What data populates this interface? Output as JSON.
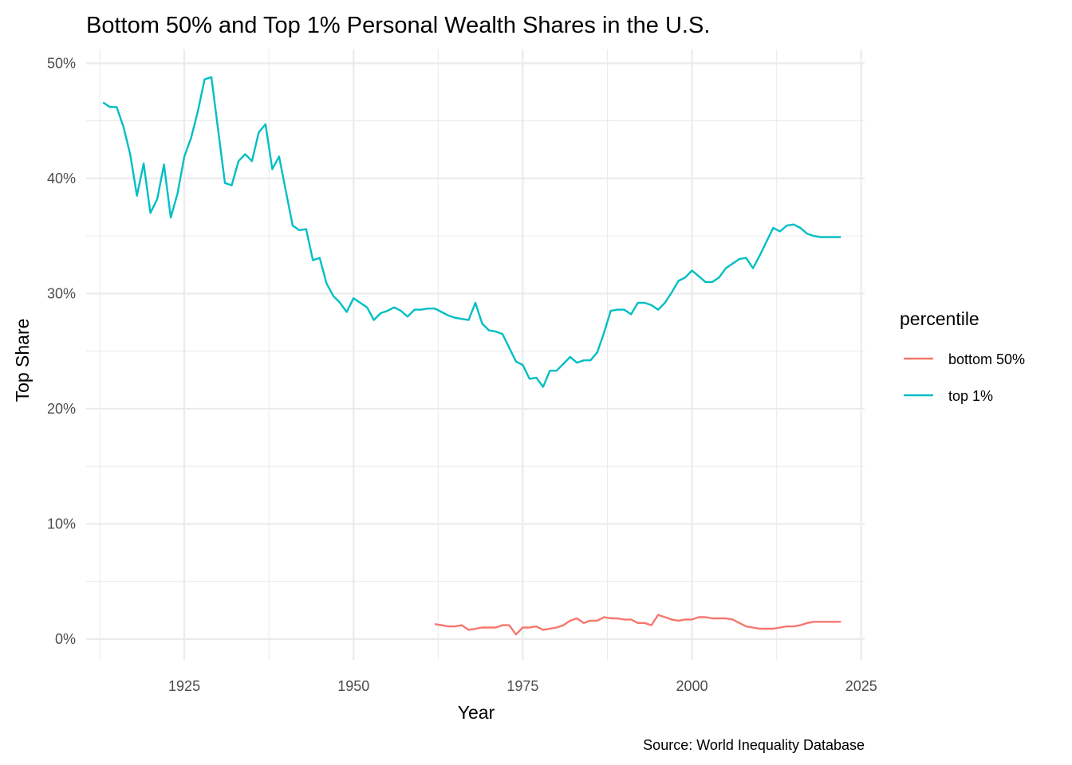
{
  "chart_data": {
    "type": "line",
    "title": "Bottom 50% and Top 1% Personal Wealth Shares in the U.S.",
    "xlabel": "Year",
    "ylabel": "Top Share",
    "caption": "Source: World Inequality Database",
    "xlim": [
      1910.5,
      2025.5
    ],
    "ylim": [
      -1.8,
      51.2
    ],
    "x_ticks": [
      1925,
      1950,
      1975,
      2000,
      2025
    ],
    "x_tick_labels": [
      "1925",
      "1950",
      "1975",
      "2000",
      "2025"
    ],
    "y_ticks": [
      0,
      10,
      20,
      30,
      40,
      50
    ],
    "y_tick_labels": [
      "0%",
      "10%",
      "20%",
      "30%",
      "40%",
      "50%"
    ],
    "grid": true,
    "legend": {
      "title": "percentile",
      "position": "right"
    },
    "series": [
      {
        "name": "bottom 50%",
        "color": "#F8766D",
        "x": [
          1962,
          1963,
          1964,
          1965,
          1966,
          1967,
          1968,
          1969,
          1970,
          1971,
          1972,
          1973,
          1974,
          1975,
          1976,
          1977,
          1978,
          1979,
          1980,
          1981,
          1982,
          1983,
          1984,
          1985,
          1986,
          1987,
          1988,
          1989,
          1990,
          1991,
          1992,
          1993,
          1994,
          1995,
          1996,
          1997,
          1998,
          1999,
          2000,
          2001,
          2002,
          2003,
          2004,
          2005,
          2006,
          2007,
          2008,
          2009,
          2010,
          2011,
          2012,
          2013,
          2014,
          2015,
          2016,
          2017,
          2018,
          2019,
          2020,
          2021,
          2022
        ],
        "values": [
          1.3,
          1.2,
          1.1,
          1.1,
          1.2,
          0.8,
          0.9,
          1.0,
          1.0,
          1.0,
          1.2,
          1.2,
          0.4,
          1.0,
          1.0,
          1.1,
          0.8,
          0.9,
          1.0,
          1.2,
          1.6,
          1.8,
          1.4,
          1.6,
          1.6,
          1.9,
          1.8,
          1.8,
          1.7,
          1.7,
          1.4,
          1.4,
          1.2,
          2.1,
          1.9,
          1.7,
          1.6,
          1.7,
          1.7,
          1.9,
          1.9,
          1.8,
          1.8,
          1.8,
          1.7,
          1.4,
          1.1,
          1.0,
          0.9,
          0.9,
          0.9,
          1.0,
          1.1,
          1.1,
          1.2,
          1.4,
          1.5,
          1.5,
          1.5,
          1.5,
          1.5
        ]
      },
      {
        "name": "top 1%",
        "color": "#00BFC4",
        "x": [
          1913,
          1914,
          1915,
          1916,
          1917,
          1918,
          1919,
          1920,
          1921,
          1922,
          1923,
          1924,
          1925,
          1926,
          1927,
          1928,
          1929,
          1930,
          1931,
          1932,
          1933,
          1934,
          1935,
          1936,
          1937,
          1938,
          1939,
          1940,
          1941,
          1942,
          1943,
          1944,
          1945,
          1946,
          1947,
          1948,
          1949,
          1950,
          1951,
          1952,
          1953,
          1954,
          1955,
          1956,
          1957,
          1958,
          1959,
          1960,
          1961,
          1962,
          1963,
          1964,
          1965,
          1966,
          1967,
          1968,
          1969,
          1970,
          1971,
          1972,
          1973,
          1974,
          1975,
          1976,
          1977,
          1978,
          1979,
          1980,
          1981,
          1982,
          1983,
          1984,
          1985,
          1986,
          1987,
          1988,
          1989,
          1990,
          1991,
          1992,
          1993,
          1994,
          1995,
          1996,
          1997,
          1998,
          1999,
          2000,
          2001,
          2002,
          2003,
          2004,
          2005,
          2006,
          2007,
          2008,
          2009,
          2010,
          2011,
          2012,
          2013,
          2014,
          2015,
          2016,
          2017,
          2018,
          2019,
          2020,
          2021,
          2022
        ],
        "values": [
          46.6,
          46.2,
          46.2,
          44.5,
          42.1,
          38.5,
          41.3,
          37.0,
          38.2,
          41.2,
          36.6,
          38.7,
          41.9,
          43.5,
          45.8,
          48.6,
          48.8,
          44.2,
          39.6,
          39.4,
          41.5,
          42.1,
          41.5,
          44.0,
          44.7,
          40.8,
          41.9,
          38.9,
          35.9,
          35.5,
          35.6,
          32.9,
          33.1,
          30.9,
          29.8,
          29.2,
          28.4,
          29.6,
          29.2,
          28.8,
          27.7,
          28.3,
          28.5,
          28.8,
          28.5,
          28.0,
          28.6,
          28.6,
          28.7,
          28.7,
          28.4,
          28.1,
          27.9,
          27.8,
          27.7,
          29.2,
          27.4,
          26.8,
          26.7,
          26.5,
          25.3,
          24.1,
          23.8,
          22.6,
          22.7,
          21.9,
          23.3,
          23.3,
          23.9,
          24.5,
          24.0,
          24.2,
          24.2,
          24.9,
          26.6,
          28.5,
          28.6,
          28.6,
          28.2,
          29.2,
          29.2,
          29.0,
          28.6,
          29.2,
          30.1,
          31.1,
          31.4,
          32.0,
          31.5,
          31.0,
          31.0,
          31.4,
          32.2,
          32.6,
          33.0,
          33.1,
          32.2,
          33.3,
          34.5,
          35.7,
          35.4,
          35.9,
          36.0,
          35.7,
          35.2,
          35.0,
          34.9,
          34.9,
          34.9,
          34.9
        ]
      }
    ]
  }
}
